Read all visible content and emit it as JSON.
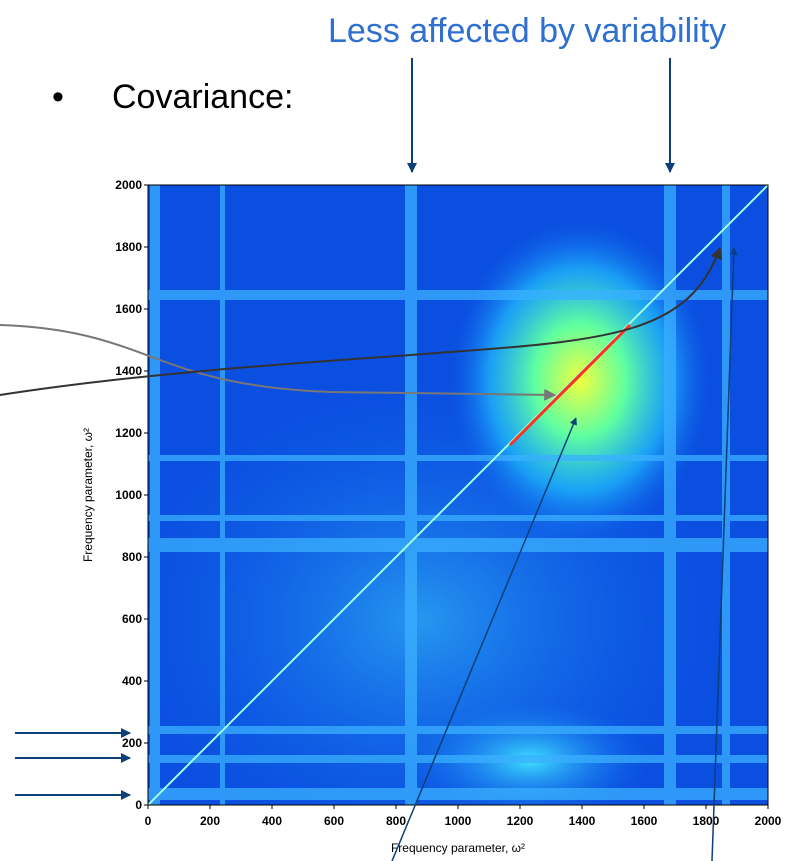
{
  "heading": "Less affected by variability",
  "bullet": "Covariance:",
  "chart_data": {
    "type": "heatmap",
    "xlabel": "Frequency parameter, ω²",
    "ylabel": "Frequency parameter, ω²",
    "xlim": [
      0,
      2000
    ],
    "ylim": [
      0,
      2000
    ],
    "xticks": [
      0,
      200,
      400,
      600,
      800,
      1000,
      1200,
      1400,
      1600,
      1800,
      2000
    ],
    "yticks": [
      0,
      200,
      400,
      600,
      800,
      1000,
      1200,
      1400,
      1600,
      1800,
      2000
    ]
  }
}
